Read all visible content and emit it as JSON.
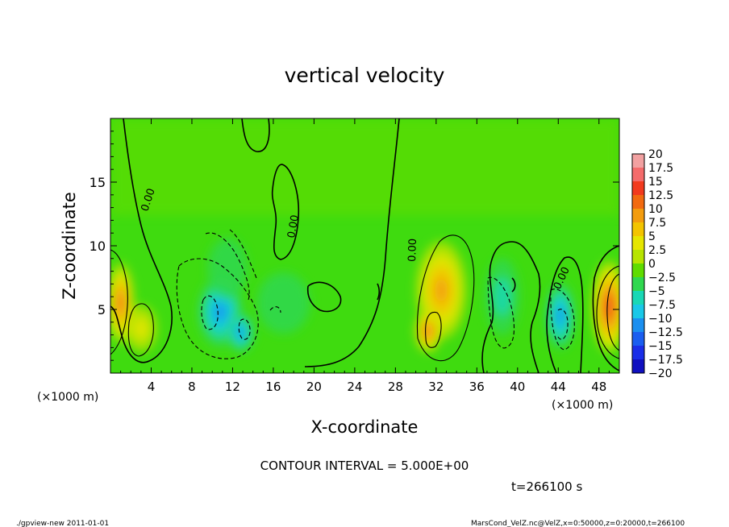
{
  "chart_data": {
    "type": "heatmap",
    "title": "vertical velocity",
    "xlabel": "X-coordinate",
    "ylabel": "Z-coordinate",
    "x_unit": "(×1000 m)",
    "y_unit": "(×1000 m)",
    "xlim": [
      0,
      50
    ],
    "ylim": [
      0,
      20
    ],
    "x_ticks": [
      4,
      8,
      12,
      16,
      20,
      24,
      28,
      32,
      36,
      40,
      44,
      48
    ],
    "y_ticks": [
      5,
      10,
      15
    ],
    "colorbar": {
      "labels": [
        "20",
        "17.5",
        "15",
        "12.5",
        "10",
        "7.5",
        "5",
        "2.5",
        "0",
        "−2.5",
        "−5",
        "−7.5",
        "−10",
        "−12.5",
        "−15",
        "−17.5",
        "−20"
      ],
      "colors": [
        "#f2a1a1",
        "#f46b6b",
        "#f23a1e",
        "#f26a10",
        "#f39c0e",
        "#f3c400",
        "#e6e600",
        "#b7e400",
        "#5fdc00",
        "#2fd84f",
        "#19d8b5",
        "#19c8e8",
        "#1a8ff0",
        "#1a5ef0",
        "#1a2ee8",
        "#1010c0",
        "#7a00c8"
      ]
    },
    "contour_labels": [
      "0.00",
      "0.00",
      "0.00",
      "0.00"
    ],
    "features": [
      {
        "x": 1.0,
        "z": 5.5,
        "value": 12,
        "sx": 1.0,
        "sz": 2.6
      },
      {
        "x": 3.0,
        "z": 3.5,
        "value": 5,
        "sx": 1.2,
        "sz": 1.5
      },
      {
        "x": 10.8,
        "z": 4.8,
        "value": -10,
        "sx": 1.7,
        "sz": 2.3
      },
      {
        "x": 12.8,
        "z": 3.2,
        "value": -9,
        "sx": 1.0,
        "sz": 1.3
      },
      {
        "x": 11.5,
        "z": 8.2,
        "value": -3,
        "sx": 1.5,
        "sz": 2.0
      },
      {
        "x": 17.0,
        "z": 5.5,
        "value": -2,
        "sx": 2.0,
        "sz": 2.0
      },
      {
        "x": 32.5,
        "z": 6.5,
        "value": 9,
        "sx": 1.9,
        "sz": 3.2
      },
      {
        "x": 31.2,
        "z": 3.3,
        "value": 12,
        "sx": 1.0,
        "sz": 1.4
      },
      {
        "x": 38.5,
        "z": 6.0,
        "value": -4,
        "sx": 1.3,
        "sz": 2.5
      },
      {
        "x": 44.2,
        "z": 4.5,
        "value": -9,
        "sx": 1.1,
        "sz": 2.2
      },
      {
        "x": 49.0,
        "z": 5.2,
        "value": 14,
        "sx": 1.3,
        "sz": 3.0
      }
    ],
    "contour_interval": "CONTOUR INTERVAL = 5.000E+00",
    "time": "t=266100 s"
  },
  "footer": {
    "left": "./gpview-new  2011-01-01",
    "right": "MarsCond_VelZ.nc@VelZ,x=0:50000,z=0:20000,t=266100"
  }
}
